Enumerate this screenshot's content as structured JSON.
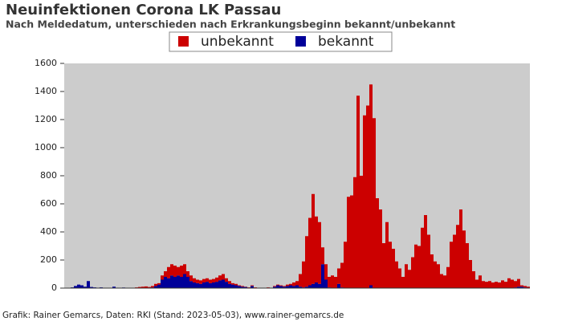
{
  "chart_data": {
    "type": "bar",
    "stacked": true,
    "title": "Neuinfektionen Corona LK Passau",
    "subtitle": "Nach Meldedatum, unterschieden nach Erkrankungsbeginn bekannt/unbekannt",
    "source": "Grafik: Rainer Gemarcs, Daten: RKI (Stand: 2023-05-03), www.rainer-gemarcs.de",
    "categories": [
      null,
      null,
      null,
      null,
      null,
      null,
      null,
      null,
      null,
      null,
      null,
      null,
      null,
      null,
      null,
      null,
      null,
      null,
      null,
      null,
      null,
      null,
      null,
      null,
      null,
      null,
      null,
      null,
      null,
      null,
      null,
      null,
      null,
      null,
      null,
      null,
      null,
      null,
      null,
      null,
      null,
      null,
      null,
      null,
      null,
      null,
      null,
      null,
      null,
      null,
      null,
      null,
      null,
      null,
      null,
      null,
      null,
      null,
      null,
      null,
      null,
      null,
      null,
      null,
      null,
      null,
      null,
      null,
      null,
      null,
      null,
      null,
      null,
      null,
      null,
      null,
      null,
      null,
      null,
      null,
      null,
      null,
      null,
      null,
      null,
      null,
      null,
      null,
      null,
      null,
      null,
      null,
      null,
      null,
      null,
      null,
      null,
      null,
      null,
      null,
      null,
      null,
      null,
      null,
      null,
      null,
      null,
      null,
      null,
      null,
      null,
      null,
      null,
      null,
      null,
      null,
      null,
      null,
      null,
      null,
      null,
      null,
      null,
      null,
      null,
      null,
      null,
      null,
      null,
      null,
      null,
      null,
      null,
      null,
      null,
      null,
      null,
      null,
      null,
      null,
      null,
      null,
      null,
      null,
      null
    ],
    "series": [
      {
        "name": "bekannt",
        "color": "#000099",
        "values": [
          0,
          0,
          5,
          15,
          25,
          20,
          10,
          50,
          8,
          5,
          3,
          5,
          0,
          0,
          2,
          10,
          3,
          0,
          4,
          0,
          2,
          0,
          0,
          0,
          2,
          3,
          2,
          5,
          15,
          25,
          60,
          80,
          70,
          90,
          80,
          90,
          80,
          100,
          80,
          50,
          40,
          35,
          30,
          40,
          45,
          35,
          40,
          45,
          55,
          60,
          45,
          30,
          25,
          20,
          15,
          10,
          8,
          3,
          15,
          2,
          0,
          0,
          0,
          3,
          0,
          10,
          20,
          15,
          10,
          15,
          20,
          15,
          20,
          10,
          5,
          10,
          20,
          30,
          40,
          30,
          170,
          60,
          5,
          0,
          0,
          30,
          5,
          0,
          0,
          0,
          0,
          0,
          0,
          0,
          0,
          20,
          0,
          0,
          0,
          0,
          0,
          0,
          0,
          0,
          0,
          0,
          0,
          0,
          0,
          0,
          0,
          0,
          0,
          0,
          0,
          0,
          0,
          0,
          0,
          0,
          0,
          0,
          0,
          0,
          0,
          0,
          0,
          0,
          0,
          0,
          0,
          0,
          0,
          0,
          0,
          0,
          0,
          0,
          0,
          0,
          5,
          10,
          10,
          5,
          2
        ]
      },
      {
        "name": "unbekannt",
        "color": "#cc0000",
        "values": [
          0,
          0,
          0,
          0,
          0,
          0,
          0,
          0,
          0,
          0,
          0,
          0,
          0,
          0,
          0,
          0,
          0,
          0,
          0,
          0,
          0,
          0,
          5,
          8,
          8,
          9,
          6,
          10,
          15,
          10,
          30,
          40,
          80,
          80,
          80,
          60,
          80,
          70,
          40,
          40,
          30,
          25,
          25,
          25,
          25,
          25,
          25,
          30,
          35,
          40,
          25,
          20,
          10,
          10,
          5,
          5,
          2,
          2,
          5,
          3,
          0,
          0,
          0,
          2,
          0,
          5,
          5,
          5,
          5,
          10,
          10,
          25,
          30,
          90,
          185,
          360,
          480,
          640,
          470,
          440,
          120,
          110,
          75,
          90,
          80,
          110,
          175,
          330,
          650,
          660,
          790,
          1370,
          800,
          1230,
          1300,
          1430,
          1210,
          640,
          560,
          320,
          470,
          330,
          280,
          190,
          140,
          80,
          170,
          130,
          220,
          310,
          300,
          430,
          520,
          380,
          240,
          190,
          170,
          100,
          90,
          150,
          330,
          380,
          450,
          560,
          410,
          320,
          200,
          120,
          60,
          90,
          50,
          45,
          50,
          40,
          45,
          40,
          55,
          45,
          70,
          60,
          45,
          55,
          10,
          10,
          8
        ]
      }
    ],
    "legend_order": [
      1,
      0
    ],
    "ylim": [
      0,
      1600
    ],
    "yticks": [
      0,
      200,
      400,
      600,
      800,
      1000,
      1200,
      1400,
      1600
    ],
    "grid": false,
    "plot_background": "#cccccc"
  }
}
